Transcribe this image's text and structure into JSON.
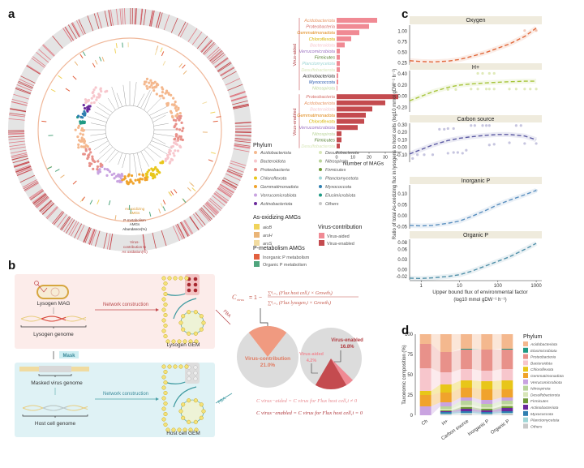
{
  "panels": {
    "a": "a",
    "b": "b",
    "c": "c",
    "d": "d"
  },
  "panel_a": {
    "ring_labels": {
      "as_amgs": [
        "As-oxidizing",
        "AMGs"
      ],
      "p_amgs": [
        "P-metabolism",
        "AMGs"
      ],
      "abundance": "Abundance(%)",
      "virus_contribution": [
        "Virus-",
        "contribution to",
        "As oxidation(%)"
      ]
    },
    "legend": {
      "phylum_title": "Phylum",
      "phyla": [
        {
          "name": "Acidobacteriota",
          "color": "#f4b88e"
        },
        {
          "name": "Bacteroidota",
          "color": "#f7c6cc"
        },
        {
          "name": "Proteobacteria",
          "color": "#e8918a"
        },
        {
          "name": "Chloroflexota",
          "color": "#e8c619"
        },
        {
          "name": "Gemmatimonadota",
          "color": "#f0a32c"
        },
        {
          "name": "Verrucomicrobiota",
          "color": "#c9a3e0"
        },
        {
          "name": "Actinobacteriota",
          "color": "#6a2a9c"
        },
        {
          "name": "Desulfobacterota",
          "color": "#d8e6b8"
        },
        {
          "name": "Nitrospirota",
          "color": "#b9d49a"
        },
        {
          "name": "Firmicutes",
          "color": "#6f9a3a"
        },
        {
          "name": "Planctomycetota",
          "color": "#9fd6d6"
        },
        {
          "name": "Myxococcota",
          "color": "#2f7fb0"
        },
        {
          "name": "Elusimicrobiota",
          "color": "#1f9a84"
        },
        {
          "name": "Others",
          "color": "#c8c8c8"
        }
      ],
      "as_title": "As-oxidizing AMGs",
      "as_genes": [
        {
          "name": "aioB",
          "color": "#f0d35a"
        },
        {
          "name": "arsH",
          "color": "#eab578"
        },
        {
          "name": "arsS",
          "color": "#f2dca2"
        }
      ],
      "vc_title": "Virus-contribution",
      "vc_items": [
        {
          "name": "Virus-aided",
          "color": "#f08a94"
        },
        {
          "name": "Virus-enabled",
          "color": "#c44b4f"
        }
      ],
      "p_title": "P-metabolism AMGs",
      "p_items": [
        {
          "name": "Inorganic P metabolism",
          "color": "#e2603f"
        },
        {
          "name": "Organic P metabolism",
          "color": "#4fa57d"
        }
      ]
    }
  },
  "panel_b": {
    "lysogen_mag": "Lysogen MAG",
    "lysogen_genome": "Lysogen genome",
    "mask": "Mask",
    "masked_virus_genome": "Masked virus genome",
    "host_cell_genome": "Host cell genome",
    "network_construction_1": "Network construction",
    "network_construction_2": "Network construction",
    "lysogen_gem": "Lysogen GEM",
    "host_cell_gem": "Host cell GEM",
    "fba_1": "FBA",
    "fba_2": "FBA",
    "formula": {
      "lhs": "C",
      "lhs_sub": "virus",
      "eq": "= 1 −",
      "num": "∑ⁿᵢ₌₁ (Flux host cell,i × Growthᵢ)",
      "den": "∑ⁿᵢ₌₁ (Flux lysogen,i × Growthᵢ)"
    },
    "pie_left": {
      "label": "Virus-contribution",
      "value_label": "21.0%",
      "value": 21.0,
      "color": "#f09a80"
    },
    "pie_right": {
      "aided_label": "Virus-aided",
      "aided_value_label": "4.2%",
      "aided_value": 4.2,
      "aided_color": "#f08a94",
      "enabled_label": "Virus-enabled",
      "enabled_value_label": "16.8%",
      "enabled_value": 16.8,
      "enabled_color": "#c44b4f"
    },
    "formula_aided": "C virus−aided = C virus for Flux host cell,i ≠ 0",
    "formula_enabled": "C virus−enabled = C virus for Flux host cell,i = 0"
  },
  "chart_data": [
    {
      "type": "bar",
      "orientation": "horizontal",
      "title": "",
      "xlabel": "Number of MAGs",
      "xlim": [
        0,
        40
      ],
      "xticks": [
        "0",
        "10",
        "20",
        "30"
      ],
      "groups": [
        {
          "name": "Virus-aided",
          "color": "#f08a94",
          "categories": [
            "Acidobacteriota",
            "Proteobacteria",
            "Gemmatimonadota",
            "Chloroflexota",
            "Bacteroidota",
            "Verrucomicrobiota",
            "Firmicutes",
            "Planctomycetota",
            "Desulfobacterota",
            "Actinobacteriota",
            "Myxococcota",
            "Nitrospirota"
          ],
          "values": [
            25,
            20,
            14,
            9,
            5,
            2,
            2,
            2,
            2,
            1,
            1,
            0.5
          ]
        },
        {
          "name": "Virus-enabled",
          "color": "#c44b4f",
          "categories": [
            "Proteobacteria",
            "Acidobacteriota",
            "Bacteroidota",
            "Gemmatimonadota",
            "Chloroflexota",
            "Verrucomicrobiota",
            "Nitrospirota",
            "Firmicutes",
            "Desulfobacterota"
          ],
          "values": [
            38,
            30,
            22,
            18,
            17,
            13,
            3,
            3,
            2
          ]
        }
      ]
    },
    {
      "type": "line",
      "ylabel": "Ratio of total As-oxidizing flux in lysogens to host cells (log10 mmol gDW⁻¹ h⁻¹)",
      "xlabel": [
        "Upper bound flux of environmental factor",
        "(log10 mmol gDW⁻¹ h⁻¹)"
      ],
      "xscale": "log",
      "xlim": [
        0.5,
        1400
      ],
      "xticks": [
        "1",
        "10",
        "100",
        "1000"
      ],
      "facets": [
        {
          "title": "Oxygen",
          "color": "#e0673a",
          "ylim": [
            0.2,
            1.15
          ],
          "yticks": [
            "0.25",
            "0.50",
            "0.75",
            "1.00"
          ],
          "x": [
            0.5,
            1,
            2,
            5,
            10,
            20,
            50,
            100,
            200,
            500,
            1000
          ],
          "y": [
            0.3,
            0.28,
            0.27,
            0.29,
            0.33,
            0.4,
            0.5,
            0.6,
            0.7,
            0.88,
            1.08
          ],
          "points_x": [
            500,
            1000
          ],
          "points_y": [
            1.02,
            1.02
          ]
        },
        {
          "title": "H+",
          "color": "#a6c43a",
          "ylim": [
            -0.28,
            0.46
          ],
          "yticks": [
            "-0.20",
            "0.00",
            "0.20",
            "0.40"
          ],
          "x": [
            0.5,
            1,
            2,
            5,
            10,
            20,
            50,
            100,
            200,
            500,
            1000
          ],
          "y": [
            -0.08,
            0.0,
            0.08,
            0.16,
            0.2,
            0.22,
            0.24,
            0.25,
            0.26,
            0.27,
            0.27
          ],
          "points_x": [
            5,
            8,
            20,
            30,
            50,
            60,
            80,
            200,
            300,
            500,
            700,
            1000,
            30,
            40,
            60,
            80
          ],
          "points_y": [
            0.12,
            0.12,
            0.13,
            0.13,
            0.13,
            0.13,
            0.13,
            0.13,
            0.13,
            0.13,
            0.13,
            0.13,
            0.41,
            0.41,
            0.41,
            0.41
          ]
        },
        {
          "title": "Carbon source",
          "color": "#5c5aa3",
          "ylim": [
            -0.2,
            0.32
          ],
          "yticks": [
            "-0.10",
            "0.00",
            "0.10",
            "0.20",
            "0.30"
          ],
          "x": [
            0.5,
            1,
            2,
            5,
            10,
            20,
            50,
            100,
            200,
            500,
            1000
          ],
          "y": [
            -0.09,
            -0.03,
            0.03,
            0.09,
            0.12,
            0.14,
            0.16,
            0.17,
            0.17,
            0.15,
            0.1
          ],
          "points_x": [
            0.6,
            0.8,
            1.2,
            2,
            5,
            7,
            9,
            12,
            15,
            3,
            4,
            5,
            7,
            20,
            25,
            40,
            50,
            60,
            300,
            400,
            60,
            80,
            200,
            500,
            1000
          ],
          "points_y": [
            -0.15,
            -0.1,
            -0.1,
            -0.1,
            -0.08,
            -0.07,
            -0.07,
            -0.08,
            -0.04,
            0.24,
            0.24,
            0.25,
            0.25,
            0.29,
            0.29,
            0.29,
            0.29,
            0.29,
            0.29,
            0.29,
            0.03,
            0.04,
            0.06,
            0.05,
            0.05
          ]
        },
        {
          "title": "Inorganic P",
          "color": "#5a8fbf",
          "ylim": [
            -0.06,
            0.14
          ],
          "yticks": [
            "-0.05",
            "0.00",
            "0.05",
            "0.10"
          ],
          "x": [
            0.5,
            1,
            2,
            5,
            10,
            20,
            50,
            100,
            200,
            500,
            1000
          ],
          "y": [
            -0.045,
            -0.047,
            -0.045,
            -0.035,
            -0.025,
            -0.005,
            0.025,
            0.05,
            0.07,
            0.095,
            0.115
          ],
          "points_x": [
            1000
          ],
          "points_y": [
            0.115
          ]
        },
        {
          "title": "Organic P",
          "color": "#4f8fa8",
          "ylim": [
            -0.03,
            0.09
          ],
          "yticks": [
            "-0.02",
            "0.00",
            "0.03",
            "0.06",
            "0.08"
          ],
          "x": [
            0.5,
            1,
            2,
            5,
            10,
            20,
            50,
            100,
            200,
            500,
            1000
          ],
          "y": [
            -0.025,
            -0.026,
            -0.024,
            -0.02,
            -0.015,
            -0.005,
            0.012,
            0.025,
            0.038,
            0.06,
            0.078
          ],
          "points_x": [],
          "points_y": []
        }
      ]
    },
    {
      "type": "bar",
      "stacked": true,
      "ylabel": "Taxonomic composition (%)",
      "ylim": [
        0,
        100
      ],
      "yticks": [
        "0",
        "25",
        "50",
        "75",
        "100"
      ],
      "categories": [
        "Ch",
        "H+",
        "Carbon source",
        "Inorganic P",
        "Organic P"
      ],
      "legend_title": "Phylum",
      "legend_position": "right",
      "series_order_top_to_bottom": [
        "Acidobacteriota",
        "Elusimicrobiota",
        "Proteobacteria",
        "Bacteroidota",
        "Chloroflexota",
        "Gemmatimonadota",
        "Verrucomicrobiota",
        "Nitrospirota",
        "Desulfobacterota",
        "Firmicutes",
        "Actinobacteriota",
        "Myxococcota",
        "Planctomycetota",
        "Others"
      ],
      "series": [
        {
          "name": "Others",
          "color": "#c8c8c8",
          "values": [
            0,
            1,
            2,
            1,
            2
          ]
        },
        {
          "name": "Planctomycetota",
          "color": "#9fd6d6",
          "values": [
            0,
            1,
            1,
            1,
            1
          ]
        },
        {
          "name": "Myxococcota",
          "color": "#2f7fb0",
          "values": [
            0,
            2,
            2,
            2,
            2
          ]
        },
        {
          "name": "Actinobacteriota",
          "color": "#6a2a9c",
          "values": [
            0,
            1,
            3,
            2,
            4
          ]
        },
        {
          "name": "Firmicutes",
          "color": "#6f9a3a",
          "values": [
            0,
            1,
            2,
            2,
            2
          ]
        },
        {
          "name": "Desulfobacterota",
          "color": "#d8e6b8",
          "values": [
            0,
            2,
            3,
            2,
            3
          ]
        },
        {
          "name": "Nitrospirota",
          "color": "#b9d49a",
          "values": [
            0,
            3,
            5,
            4,
            4
          ]
        },
        {
          "name": "Verrucomicrobiota",
          "color": "#c9a3e0",
          "values": [
            11,
            5,
            4,
            5,
            4
          ]
        },
        {
          "name": "Gemmatimonadota",
          "color": "#f0a32c",
          "values": [
            14,
            12,
            12,
            13,
            10
          ]
        },
        {
          "name": "Chloroflexota",
          "color": "#e8c619",
          "values": [
            5,
            10,
            9,
            10,
            11
          ]
        },
        {
          "name": "Bacteroidota",
          "color": "#f7c6cc",
          "values": [
            28,
            15,
            14,
            13,
            14
          ]
        },
        {
          "name": "Proteobacteria",
          "color": "#e8918a",
          "values": [
            30,
            25,
            24,
            26,
            24
          ]
        },
        {
          "name": "Elusimicrobiota",
          "color": "#1f9a84",
          "values": [
            0,
            0,
            1,
            0,
            1
          ]
        },
        {
          "name": "Acidobacteriota",
          "color": "#f4b88e",
          "values": [
            12,
            22,
            18,
            19,
            18
          ]
        }
      ]
    }
  ]
}
